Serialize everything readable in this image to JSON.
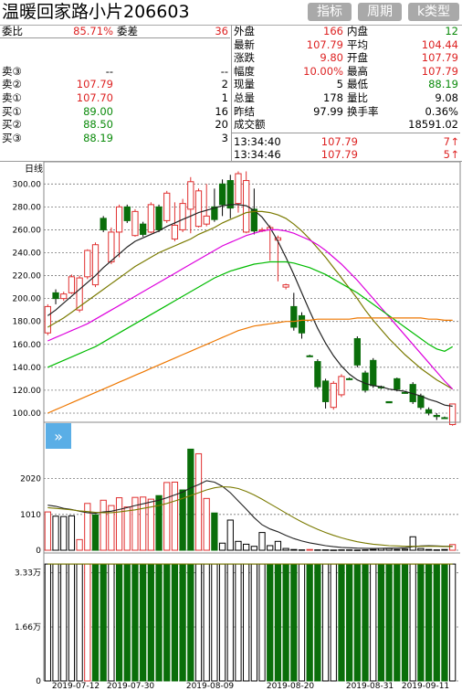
{
  "header": {
    "title": "温暖回家路小片206603",
    "buttons": [
      "指标",
      "周期",
      "k类型"
    ]
  },
  "order_book": {
    "weibi_label": "委比",
    "weibi_value": "85.71%",
    "weicha_label": "委差",
    "weicha_value": "36",
    "asks": [
      {
        "label": "卖③",
        "price": "--",
        "volume": "--"
      },
      {
        "label": "卖②",
        "price": "107.79",
        "volume": "2"
      },
      {
        "label": "卖①",
        "price": "107.70",
        "volume": "1"
      }
    ],
    "bids": [
      {
        "label": "买①",
        "price": "89.00",
        "volume": "16"
      },
      {
        "label": "买②",
        "price": "88.50",
        "volume": "20"
      },
      {
        "label": "买③",
        "price": "88.19",
        "volume": "3"
      }
    ]
  },
  "quote": {
    "waipan_label": "外盘",
    "waipan_value": "166",
    "neipan_label": "内盘",
    "neipan_value": "12",
    "rows": [
      {
        "l1": "最新",
        "v1": "107.79",
        "c1": "red",
        "l2": "平均",
        "v2": "104.44",
        "c2": "red"
      },
      {
        "l1": "涨跌",
        "v1": "9.80",
        "c1": "red",
        "l2": "开盘",
        "v2": "107.79",
        "c2": "red"
      },
      {
        "l1": "幅度",
        "v1": "10.00%",
        "c1": "red",
        "l2": "最高",
        "v2": "107.79",
        "c2": "red"
      },
      {
        "l1": "现量",
        "v1": "5",
        "c1": "black",
        "l2": "最低",
        "v2": "88.19",
        "c2": "green"
      },
      {
        "l1": "总量",
        "v1": "178",
        "c1": "black",
        "l2": "量比",
        "v2": "9.08",
        "c2": "black"
      },
      {
        "l1": "昨结",
        "v1": "97.99",
        "c1": "black",
        "l2": "换手率",
        "v2": "0.36%",
        "c2": "black"
      }
    ],
    "turnover_label": "成交额",
    "turnover_value": "18591.02"
  },
  "trades": [
    {
      "time": "13:34:40",
      "price": "107.79",
      "volume": "7",
      "arrow": "↑"
    },
    {
      "time": "13:34:46",
      "price": "107.79",
      "volume": "5",
      "arrow": "↑"
    }
  ],
  "chart_data": [
    {
      "type": "candlestick",
      "period_label": "日线",
      "y_ticks": [
        "300.00",
        "280.00",
        "260.00",
        "240.00",
        "220.00",
        "200.00",
        "180.00",
        "160.00",
        "140.00",
        "120.00",
        "100.00"
      ],
      "ylim": [
        92,
        313
      ],
      "candles": [
        [
          170,
          193,
          168,
          195
        ],
        [
          200,
          205,
          195,
          208
        ],
        [
          200,
          204,
          198,
          206
        ],
        [
          205,
          219,
          204,
          221
        ],
        [
          190,
          218,
          188,
          220
        ],
        [
          219,
          242,
          217,
          243
        ],
        [
          212,
          247,
          210,
          249
        ],
        [
          270,
          260,
          258,
          272
        ],
        [
          232,
          258,
          230,
          262
        ],
        [
          258,
          280,
          236,
          282
        ],
        [
          280,
          268,
          266,
          282
        ],
        [
          255,
          276,
          254,
          278
        ],
        [
          265,
          256,
          254,
          267
        ],
        [
          258,
          282,
          257,
          284
        ],
        [
          280,
          260,
          258,
          282
        ],
        [
          268,
          292,
          266,
          294
        ],
        [
          252,
          264,
          250,
          284
        ],
        [
          260,
          283,
          258,
          287
        ],
        [
          278,
          302,
          257,
          306
        ],
        [
          263,
          294,
          262,
          296
        ],
        [
          265,
          272,
          263,
          300
        ],
        [
          280,
          269,
          267,
          296
        ],
        [
          300,
          282,
          272,
          304
        ],
        [
          303,
          279,
          270,
          308
        ],
        [
          283,
          309,
          275,
          311
        ],
        [
          258,
          303,
          257,
          311
        ],
        [
          278,
          259,
          256,
          296
        ],
        [
          259,
          260,
          258,
          262
        ],
        [
          260,
          262,
          233,
          264
        ],
        [
          251,
          253,
          215,
          255
        ],
        [
          210,
          212,
          208,
          213
        ],
        [
          193,
          175,
          172,
          205
        ],
        [
          185,
          170,
          165,
          188
        ],
        [
          150,
          150,
          149,
          151
        ],
        [
          145,
          123,
          121,
          147
        ],
        [
          128,
          110,
          104,
          130
        ],
        [
          105,
          126,
          103,
          128
        ],
        [
          116,
          132,
          114,
          134
        ],
        [
          130,
          130,
          129,
          131
        ],
        [
          165,
          142,
          140,
          167
        ],
        [
          135,
          120,
          118,
          137
        ],
        [
          146,
          124,
          122,
          148
        ],
        [
          123,
          122,
          121,
          124
        ],
        [
          110,
          109,
          109,
          110
        ],
        [
          130,
          121,
          119,
          131
        ],
        [
          118,
          118,
          117,
          119
        ],
        [
          125,
          110,
          108,
          127
        ],
        [
          115,
          105,
          103,
          117
        ],
        [
          103,
          100,
          98,
          105
        ],
        [
          98,
          97,
          94,
          100
        ],
        [
          96,
          96,
          95,
          97
        ],
        [
          90,
          108,
          89,
          108
        ]
      ],
      "ma": [
        {
          "color": "#222222",
          "values": [
            185,
            190,
            196,
            202,
            208,
            214,
            220,
            227,
            233,
            239,
            245,
            250,
            253,
            256,
            259,
            263,
            266,
            269,
            272,
            275,
            277,
            279,
            281,
            282,
            282,
            281,
            277,
            271,
            262,
            250,
            236,
            221,
            205,
            189,
            174,
            161,
            150,
            141,
            134,
            129,
            126,
            124,
            123,
            121,
            120,
            119,
            117,
            115,
            112,
            110,
            107,
            106
          ]
        },
        {
          "color": "#7a7a00",
          "values": [
            175,
            179,
            183,
            188,
            193,
            198,
            203,
            208,
            213,
            218,
            223,
            228,
            232,
            236,
            240,
            243,
            246,
            249,
            252,
            256,
            259,
            262,
            266,
            269,
            272,
            275,
            276,
            276,
            275,
            273,
            270,
            265,
            259,
            252,
            244,
            236,
            227,
            218,
            209,
            200,
            190,
            181,
            173,
            165,
            158,
            151,
            145,
            139,
            134,
            129,
            125,
            121
          ]
        },
        {
          "color": "#dd00dd",
          "values": [
            163,
            166,
            169,
            172,
            175,
            178,
            182,
            186,
            190,
            194,
            198,
            202,
            206,
            210,
            214,
            218,
            222,
            226,
            230,
            234,
            238,
            242,
            246,
            249,
            252,
            255,
            257,
            259,
            260,
            260,
            259,
            257,
            254,
            251,
            247,
            242,
            236,
            230,
            223,
            216,
            208,
            200,
            192,
            184,
            176,
            168,
            160,
            152,
            144,
            136,
            128,
            121
          ]
        },
        {
          "color": "#00bb00",
          "values": [
            140,
            143,
            146,
            149,
            152,
            155,
            158,
            162,
            166,
            170,
            174,
            178,
            182,
            186,
            190,
            194,
            198,
            202,
            206,
            210,
            214,
            218,
            221,
            224,
            226,
            228,
            230,
            231,
            232,
            232,
            232,
            231,
            229,
            227,
            224,
            221,
            217,
            213,
            209,
            205,
            200,
            195,
            190,
            185,
            180,
            175,
            170,
            165,
            160,
            156,
            154,
            158
          ]
        },
        {
          "color": "#ee7700",
          "values": [
            100,
            103,
            106,
            109,
            112,
            115,
            118,
            121,
            124,
            127,
            130,
            133,
            136,
            139,
            142,
            145,
            148,
            151,
            154,
            157,
            160,
            163,
            166,
            169,
            172,
            174,
            176,
            177,
            178,
            179,
            180,
            180,
            181,
            181,
            182,
            182,
            182,
            182,
            182,
            183,
            183,
            183,
            183,
            183,
            183,
            183,
            183,
            183,
            182,
            182,
            181,
            181
          ]
        }
      ]
    },
    {
      "type": "bar",
      "y_ticks": [
        "2020",
        "1010",
        "0"
      ],
      "ylim": [
        0,
        3350
      ],
      "values": [
        1080,
        960,
        950,
        970,
        300,
        1320,
        1000,
        1410,
        1260,
        1480,
        1220,
        1490,
        1500,
        1440,
        1540,
        1910,
        1920,
        1700,
        2850,
        2720,
        1460,
        1050,
        200,
        850,
        250,
        170,
        110,
        500,
        130,
        250,
        50,
        20,
        10,
        20,
        10,
        10,
        5,
        10,
        10,
        5,
        10,
        20,
        50,
        50,
        20,
        30,
        380,
        50,
        20,
        10,
        20,
        160
      ],
      "ma": [
        {
          "color": "#222222",
          "values": [
            1270,
            1240,
            1180,
            1150,
            1100,
            1060,
            1040,
            1080,
            1100,
            1150,
            1200,
            1260,
            1310,
            1360,
            1410,
            1480,
            1560,
            1640,
            1760,
            1850,
            1960,
            1920,
            1800,
            1620,
            1390,
            1160,
            920,
            720,
            600,
            520,
            420,
            330,
            260,
            210,
            170,
            130,
            100,
            80,
            70,
            60,
            55,
            50,
            55,
            60,
            60,
            70,
            100,
            120,
            130,
            120,
            110,
            110
          ]
        },
        {
          "color": "#7a7a00",
          "values": [
            1200,
            1180,
            1160,
            1140,
            1110,
            1090,
            1070,
            1060,
            1060,
            1080,
            1110,
            1140,
            1180,
            1220,
            1260,
            1320,
            1390,
            1460,
            1540,
            1620,
            1700,
            1760,
            1790,
            1780,
            1740,
            1660,
            1560,
            1440,
            1310,
            1180,
            1050,
            920,
            800,
            690,
            590,
            500,
            420,
            350,
            290,
            240,
            200,
            170,
            150,
            130,
            120,
            110,
            110,
            110,
            110,
            110,
            105,
            105
          ]
        }
      ]
    },
    {
      "type": "bar",
      "y_ticks": [
        "3.33万",
        "1.66万",
        "0"
      ],
      "ylim": [
        0,
        38000
      ],
      "values": [
        36000,
        36000,
        36000,
        36000,
        36000,
        36000,
        36000,
        36000,
        36000,
        36000,
        36000,
        36000,
        36000,
        36000,
        36000,
        36000,
        36000,
        36000,
        36000,
        36000,
        36000,
        36000,
        36000,
        36000,
        36000,
        36000,
        36000,
        36000,
        36000,
        36000,
        36000,
        36000,
        36000,
        36000,
        36000,
        36000,
        36000,
        36000,
        36000,
        36000,
        36000,
        36000,
        36000,
        36000,
        36000,
        36000,
        36000,
        36000,
        36000,
        36000,
        36000,
        36000
      ],
      "ma": [
        {
          "color": "#7a7a00",
          "values": [
            36000,
            36000,
            36000,
            36000,
            36000,
            36000,
            36000,
            36000,
            36000,
            36000,
            36000,
            36000,
            36000,
            36000,
            36000,
            36000,
            36000,
            36000,
            36000,
            36000,
            36000,
            36000,
            36000,
            36000,
            36000,
            36000,
            36000,
            36000,
            36000,
            36000,
            36000,
            36000,
            36000,
            36000,
            36000,
            36000,
            36000,
            36000,
            36000,
            36000,
            36000,
            36000,
            36000,
            36000,
            36000,
            36000,
            36000,
            36000,
            36000,
            36000,
            36000,
            36000
          ]
        }
      ]
    }
  ],
  "candle_dirs": [
    "up",
    "down",
    "up",
    "up",
    "up",
    "up",
    "up",
    "down",
    "up",
    "up",
    "down",
    "up",
    "down",
    "up",
    "down",
    "up",
    "up",
    "up",
    "up",
    "up",
    "up",
    "down",
    "down",
    "down",
    "up",
    "up",
    "down",
    "up",
    "up",
    "up",
    "up",
    "down",
    "down",
    "down",
    "down",
    "down",
    "up",
    "up",
    "down",
    "down",
    "down",
    "down",
    "down",
    "down",
    "down",
    "down",
    "down",
    "down",
    "down",
    "down",
    "down",
    "up"
  ],
  "vol_dirs": [
    "up",
    "flat",
    "flat",
    "flat",
    "up",
    "up",
    "down",
    "up",
    "up",
    "up",
    "up",
    "up",
    "up",
    "up",
    "down",
    "up",
    "up",
    "down",
    "down",
    "up",
    "up",
    "down",
    "flat",
    "flat",
    "flat",
    "flat",
    "flat",
    "flat",
    "flat",
    "flat",
    "flat",
    "flat",
    "flat",
    "up",
    "flat",
    "flat",
    "flat",
    "flat",
    "flat",
    "flat",
    "flat",
    "flat",
    "flat",
    "flat",
    "flat",
    "flat",
    "flat",
    "flat",
    "flat",
    "flat",
    "flat",
    "up"
  ],
  "oi_dirs": [
    "flat",
    "flat",
    "flat",
    "flat",
    "flat",
    "up",
    "down",
    "down",
    "flat",
    "down",
    "down",
    "down",
    "down",
    "down",
    "down",
    "down",
    "down",
    "down",
    "down",
    "flat",
    "flat",
    "flat",
    "flat",
    "flat",
    "flat",
    "flat",
    "flat",
    "flat",
    "down",
    "down",
    "down",
    "down",
    "flat",
    "down",
    "down",
    "flat",
    "flat",
    "down",
    "down",
    "down",
    "down",
    "flat",
    "down",
    "down",
    "down",
    "down",
    "flat",
    "down",
    "down",
    "down",
    "down",
    "flat"
  ],
  "date_labels": [
    "2019-07-12",
    "2019-07-30",
    "2019-08-09",
    "2019-08-20",
    "2019-08-31",
    "2019-09-11"
  ],
  "expand_icon": "double-chevron-right-icon"
}
